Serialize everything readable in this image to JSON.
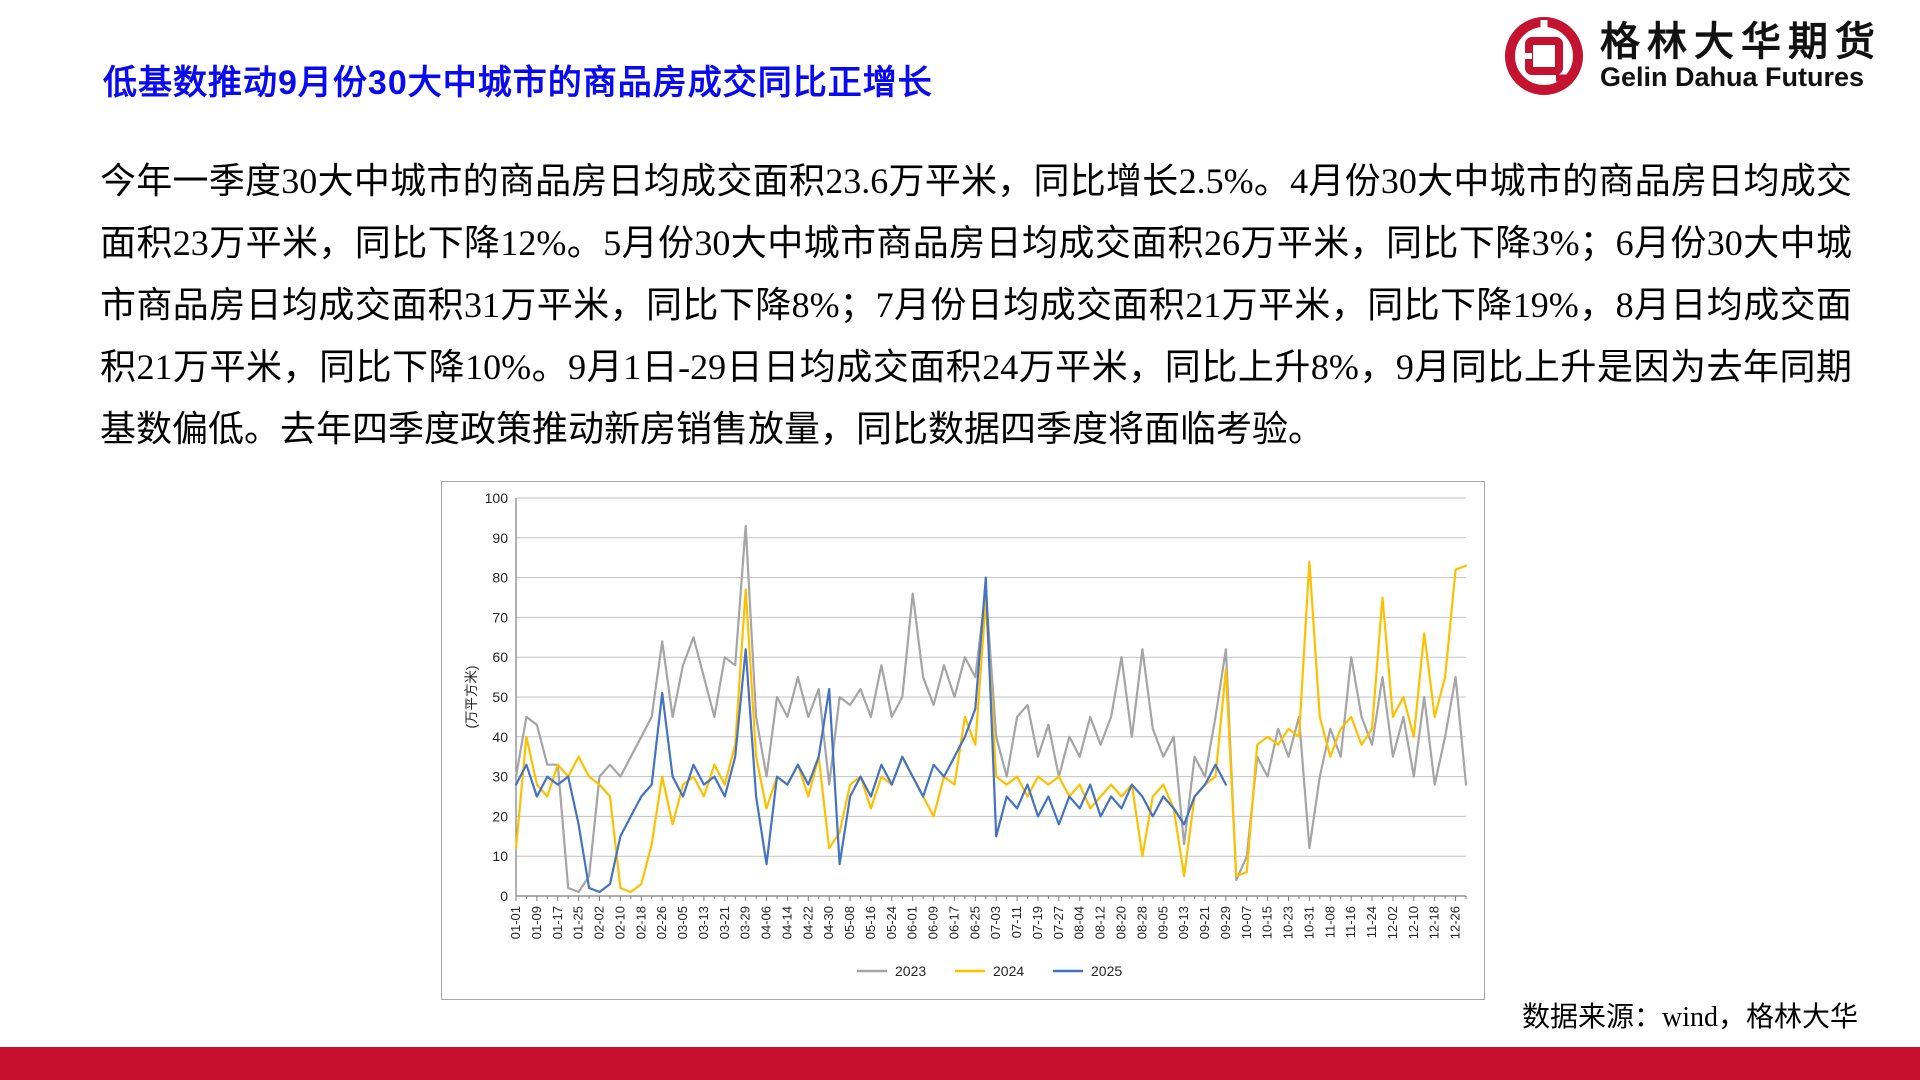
{
  "header": {
    "title": "低基数推动9月份30大中城市的商品房成交同比正增长",
    "title_color": "#0a0af0",
    "logo": {
      "cn": "格林大华期货",
      "en": "Gelin Dahua Futures",
      "color": "#c41230"
    }
  },
  "body": {
    "paragraph": "今年一季度30大中城市的商品房日均成交面积23.6万平米，同比增长2.5%。4月份30大中城市的商品房日均成交面积23万平米，同比下降12%。5月份30大中城市商品房日均成交面积26万平米，同比下降3%；6月份30大中城市商品房日均成交面积31万平米，同比下降8%；7月份日均成交面积21万平米，同比下降19%，8月日均成交面积21万平米，同比下降10%。9月1日-29日日均成交面积24万平米，同比上升8%，9月同比上升是因为去年同期基数偏低。去年四季度政策推动新房销售放量，同比数据四季度将面临考验。"
  },
  "chart_data": {
    "type": "line",
    "title": "",
    "xlabel": "",
    "ylabel": "(万平方米)",
    "ylim": [
      0,
      100
    ],
    "ytick_step": 10,
    "grid": true,
    "legend_position": "bottom",
    "x_tick_labels": [
      "01-01",
      "01-09",
      "01-17",
      "01-25",
      "02-02",
      "02-10",
      "02-18",
      "02-26",
      "03-05",
      "03-13",
      "03-21",
      "03-29",
      "04-06",
      "04-14",
      "04-22",
      "04-30",
      "05-08",
      "05-16",
      "05-24",
      "06-01",
      "06-09",
      "06-17",
      "06-25",
      "07-03",
      "07-11",
      "07-19",
      "07-27",
      "08-04",
      "08-12",
      "08-20",
      "08-28",
      "09-05",
      "09-13",
      "09-21",
      "09-29",
      "10-07",
      "10-15",
      "10-23",
      "10-31",
      "11-08",
      "11-16",
      "11-24",
      "12-02",
      "12-10",
      "12-18",
      "12-26"
    ],
    "points_per_tick": 2,
    "series": [
      {
        "name": "2023",
        "color": "#a5a5a5",
        "values": [
          30,
          45,
          43,
          33,
          33,
          2,
          1,
          5,
          30,
          33,
          30,
          35,
          40,
          45,
          64,
          45,
          58,
          65,
          55,
          45,
          60,
          58,
          93,
          45,
          30,
          50,
          45,
          55,
          45,
          52,
          28,
          50,
          48,
          52,
          45,
          58,
          45,
          50,
          76,
          55,
          48,
          58,
          50,
          60,
          55,
          77,
          40,
          30,
          45,
          48,
          35,
          43,
          30,
          40,
          35,
          45,
          38,
          45,
          60,
          40,
          62,
          42,
          35,
          40,
          13,
          35,
          30,
          45,
          62,
          4,
          10,
          35,
          30,
          42,
          35,
          45,
          12,
          30,
          42,
          35,
          60,
          45,
          38,
          55,
          35,
          45,
          30,
          50,
          28,
          40,
          55,
          28
        ]
      },
      {
        "name": "2024",
        "color": "#ffc000",
        "values": [
          12,
          40,
          28,
          25,
          33,
          30,
          35,
          30,
          28,
          25,
          2,
          1,
          3,
          13,
          30,
          18,
          28,
          30,
          25,
          33,
          28,
          38,
          77,
          35,
          22,
          30,
          28,
          33,
          25,
          35,
          12,
          16,
          28,
          30,
          22,
          30,
          28,
          35,
          30,
          25,
          20,
          30,
          28,
          45,
          38,
          74,
          30,
          28,
          30,
          25,
          30,
          28,
          30,
          25,
          28,
          22,
          25,
          28,
          25,
          28,
          10,
          25,
          28,
          22,
          5,
          25,
          28,
          30,
          57,
          5,
          6,
          38,
          40,
          38,
          42,
          40,
          84,
          45,
          35,
          42,
          45,
          38,
          42,
          75,
          45,
          50,
          40,
          66,
          45,
          55,
          82,
          83
        ]
      },
      {
        "name": "2025",
        "color": "#4472c4",
        "values": [
          28,
          33,
          25,
          30,
          28,
          30,
          18,
          2,
          1,
          3,
          15,
          20,
          25,
          28,
          51,
          30,
          25,
          33,
          28,
          30,
          25,
          35,
          62,
          25,
          8,
          30,
          28,
          33,
          28,
          35,
          52,
          8,
          25,
          30,
          25,
          33,
          28,
          35,
          30,
          25,
          33,
          30,
          35,
          40,
          47,
          80,
          15,
          25,
          22,
          28,
          20,
          25,
          18,
          25,
          22,
          28,
          20,
          25,
          22,
          28,
          25,
          20,
          25,
          22,
          18,
          25,
          28,
          33,
          28
        ]
      }
    ]
  },
  "footer": {
    "source": "数据来源：wind，格林大华",
    "bar_color": "#c8102e"
  }
}
